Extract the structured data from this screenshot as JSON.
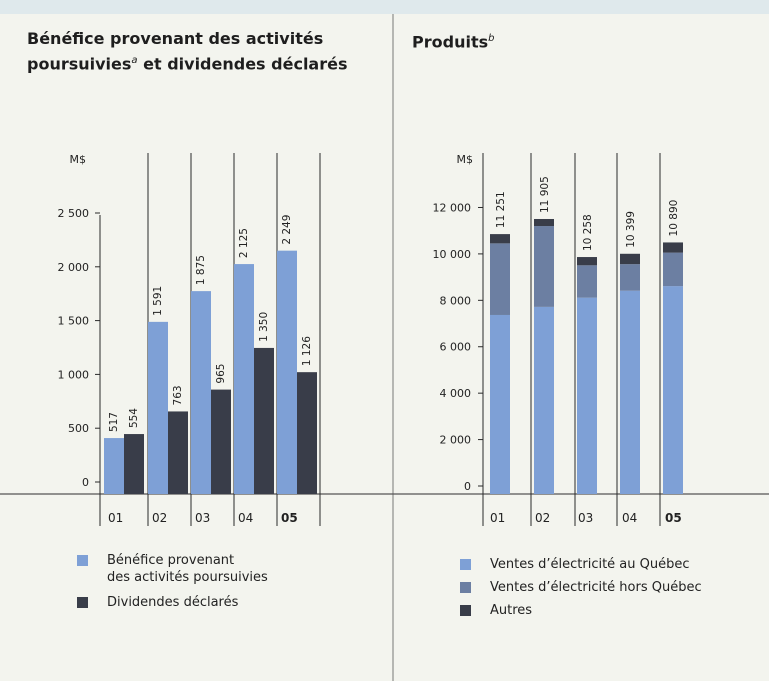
{
  "colors": {
    "light_blue": "#7ea0d6",
    "mid_blue": "#6c7fa2",
    "dark": "#393d49",
    "grid": "#2a2a2a"
  },
  "left_panel": {
    "title_line1": "Bénéfice provenant des activités",
    "title_line2_a": "poursuivies",
    "title_sup": "a",
    "title_line2_b": " et dividendes déclarés",
    "legend": [
      {
        "label_line1": "Bénéfice provenant",
        "label_line2": "des activités poursuivies",
        "color": "#7ea0d6"
      },
      {
        "label_line1": "Dividendes déclarés",
        "label_line2": "",
        "color": "#393d49"
      }
    ]
  },
  "right_panel": {
    "title": "Produits",
    "title_sup": "b",
    "legend": [
      {
        "label": "Ventes d’électricité au Québec",
        "color": "#7ea0d6"
      },
      {
        "label": "Ventes d’électricité hors Québec",
        "color": "#6c7fa2"
      },
      {
        "label": "Autres",
        "color": "#393d49"
      }
    ]
  },
  "chart_data": [
    {
      "type": "bar",
      "unit_label": "M$",
      "categories": [
        "01",
        "02",
        "03",
        "04",
        "05"
      ],
      "category_bold": [
        false,
        false,
        false,
        false,
        true
      ],
      "ylim": [
        0,
        2700
      ],
      "yticks": [
        0,
        500,
        1000,
        1500,
        2000,
        2500
      ],
      "ytick_labels": [
        "0",
        "500",
        "1 000",
        "1 500",
        "2 000",
        "2 500"
      ],
      "series": [
        {
          "name": "Bénéfice provenant des activités poursuivies",
          "values": [
            517,
            1591,
            1875,
            2125,
            2249
          ],
          "labels": [
            "517",
            "1 591",
            "1 875",
            "2 125",
            "2 249"
          ],
          "color": "#7ea0d6"
        },
        {
          "name": "Dividendes déclarés",
          "values": [
            554,
            763,
            965,
            1350,
            1126
          ],
          "labels": [
            "554",
            "763",
            "965",
            "1 350",
            "1 126"
          ],
          "color": "#393d49"
        }
      ]
    },
    {
      "type": "bar",
      "stacked": true,
      "unit_label": "M$",
      "categories": [
        "01",
        "02",
        "03",
        "04",
        "05"
      ],
      "category_bold": [
        false,
        false,
        false,
        false,
        true
      ],
      "ylim": [
        0,
        13500
      ],
      "yticks": [
        0,
        2000,
        4000,
        6000,
        8000,
        10000,
        12000
      ],
      "ytick_labels": [
        "0",
        "2 000",
        "4 000",
        "6 000",
        "8 000",
        "10 000",
        "12 000"
      ],
      "totals": [
        11251,
        11905,
        10258,
        10399,
        10890
      ],
      "total_labels": [
        "11 251",
        "11 905",
        "10 258",
        "10 399",
        "10 890"
      ],
      "series": [
        {
          "name": "Ventes d’électricité au Québec",
          "values": [
            7750,
            8100,
            8500,
            8800,
            9000
          ],
          "color": "#7ea0d6"
        },
        {
          "name": "Ventes d’électricité hors Québec",
          "values": [
            3100,
            3500,
            1400,
            1150,
            1450
          ],
          "color": "#6c7fa2"
        },
        {
          "name": "Autres",
          "values": [
            401,
            305,
            358,
            449,
            440
          ],
          "color": "#393d49"
        }
      ]
    }
  ]
}
